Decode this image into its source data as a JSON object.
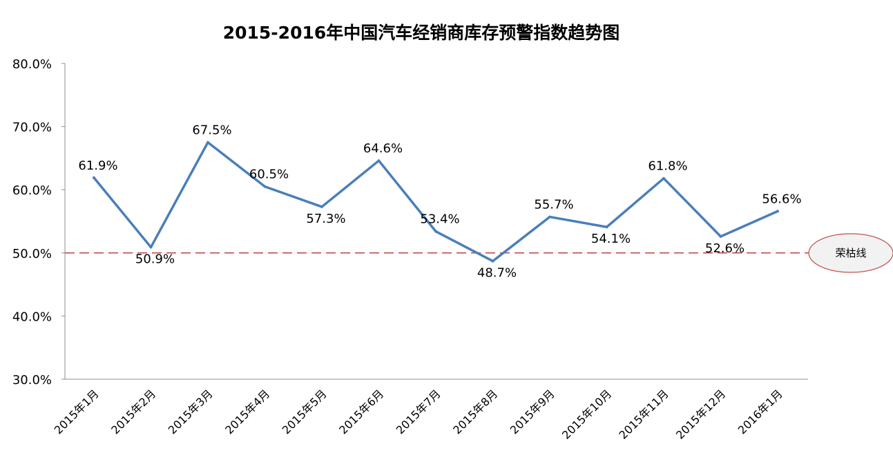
{
  "chart_data": {
    "type": "line",
    "title": "2015-2016年中国汽车经销商库存预警指数趋势图",
    "categories": [
      "2015年1月",
      "2015年2月",
      "2015年3月",
      "2015年4月",
      "2015年5月",
      "2015年6月",
      "2015年7月",
      "2015年8月",
      "2015年9月",
      "2015年10月",
      "2015年11月",
      "2015年12月",
      "2016年1月"
    ],
    "series": [
      {
        "values": [
          61.9,
          50.9,
          67.5,
          60.5,
          57.3,
          64.6,
          53.4,
          48.7,
          55.7,
          54.1,
          61.8,
          52.6,
          56.6
        ]
      }
    ],
    "data_labels": [
      "61.9%",
      "50.9%",
      "67.5%",
      "60.5%",
      "57.3%",
      "64.6%",
      "53.4%",
      "48.7%",
      "55.7%",
      "54.1%",
      "61.8%",
      "52.6%",
      "56.6%"
    ],
    "label_position": [
      "above",
      "below",
      "above",
      "above",
      "below",
      "above",
      "above",
      "below",
      "above",
      "below",
      "above",
      "below",
      "above"
    ],
    "ylim": [
      30,
      80
    ],
    "yticks": [
      30,
      40,
      50,
      60,
      70,
      80
    ],
    "ytick_labels": [
      "30.0%",
      "40.0%",
      "50.0%",
      "60.0%",
      "70.0%",
      "80.0%"
    ],
    "xlabel": "",
    "ylabel": "",
    "grid": false,
    "line_color": "#4a7ebb",
    "reference_line": {
      "value": 50,
      "label": "荣枯线",
      "color": "#c0504d",
      "style": "dashed"
    }
  }
}
